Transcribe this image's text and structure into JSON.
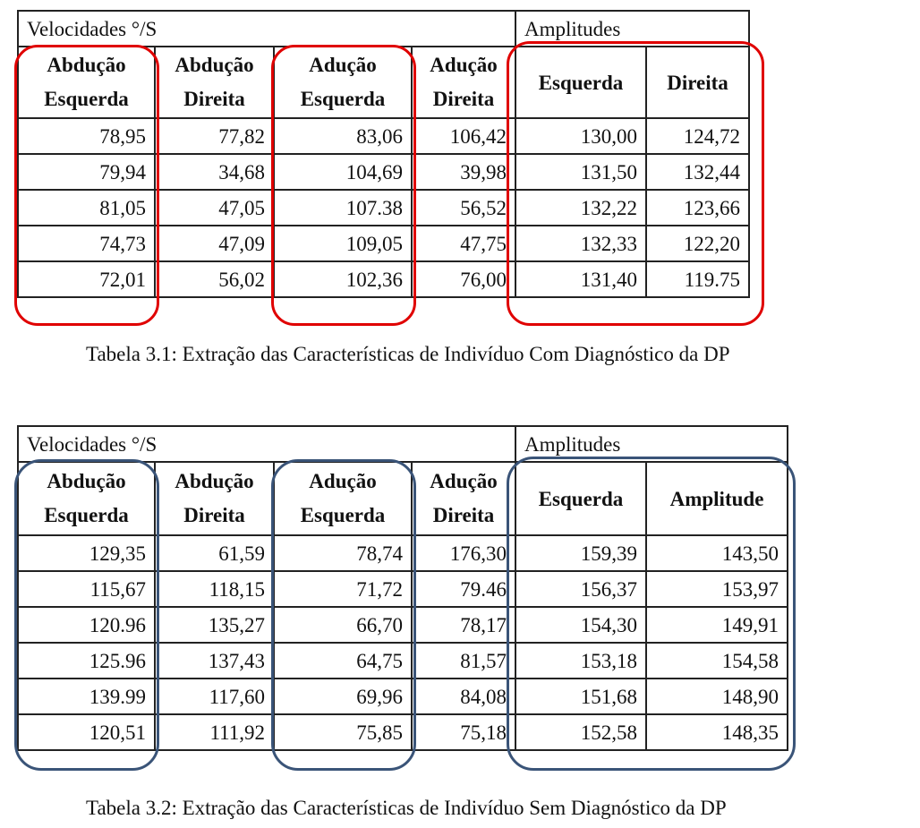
{
  "table1": {
    "group_left": "Velocidades °/S",
    "group_right": "Amplitudes",
    "col_headers": [
      [
        "Abdução",
        "Esquerda"
      ],
      [
        "Abdução",
        "Direita"
      ],
      [
        "Adução",
        "Esquerda"
      ],
      [
        "Adução",
        "Direita"
      ],
      [
        "Esquerda"
      ],
      [
        "Direita"
      ]
    ],
    "rows": [
      [
        "78,95",
        "77,82",
        "83,06",
        "106,42",
        "130,00",
        "124,72"
      ],
      [
        "79,94",
        "34,68",
        "104,69",
        "39,98",
        "131,50",
        "132,44"
      ],
      [
        "81,05",
        "47,05",
        "107.38",
        "56,52",
        "132,22",
        "123,66"
      ],
      [
        "74,73",
        "47,09",
        "109,05",
        "47,75",
        "132,33",
        "122,20"
      ],
      [
        "72,01",
        "56,02",
        "102,36",
        "76,00",
        "131,40",
        "119.75"
      ]
    ],
    "caption": "Tabela 3.1: Extração das Características de Indivíduo Com Diagnóstico da  DP",
    "highlight_color": "#e00000"
  },
  "table2": {
    "group_left": "Velocidades °/S",
    "group_right": "Amplitudes",
    "col_headers": [
      [
        "Abdução",
        "Esquerda"
      ],
      [
        "Abdução",
        "Direita"
      ],
      [
        "Adução",
        "Esquerda"
      ],
      [
        "Adução",
        "Direita"
      ],
      [
        "Esquerda"
      ],
      [
        "Amplitude"
      ]
    ],
    "rows": [
      [
        "129,35",
        "61,59",
        "78,74",
        "176,30",
        "159,39",
        "143,50"
      ],
      [
        "115,67",
        "118,15",
        "71,72",
        "79.46",
        "156,37",
        "153,97"
      ],
      [
        "120.96",
        "135,27",
        "66,70",
        "78,17",
        "154,30",
        "149,91"
      ],
      [
        "125.96",
        "137,43",
        "64,75",
        "81,57",
        "153,18",
        "154,58"
      ],
      [
        "139.99",
        "117,60",
        "69,96",
        "84,08",
        "151,68",
        "148,90"
      ],
      [
        "120,51",
        "111,92",
        "75,85",
        "75,18",
        "152,58",
        "148,35"
      ]
    ],
    "caption": "Tabela 3.2: Extração das Características de Indivíduo Sem Diagnóstico da  DP",
    "highlight_color": "#3a5478"
  }
}
